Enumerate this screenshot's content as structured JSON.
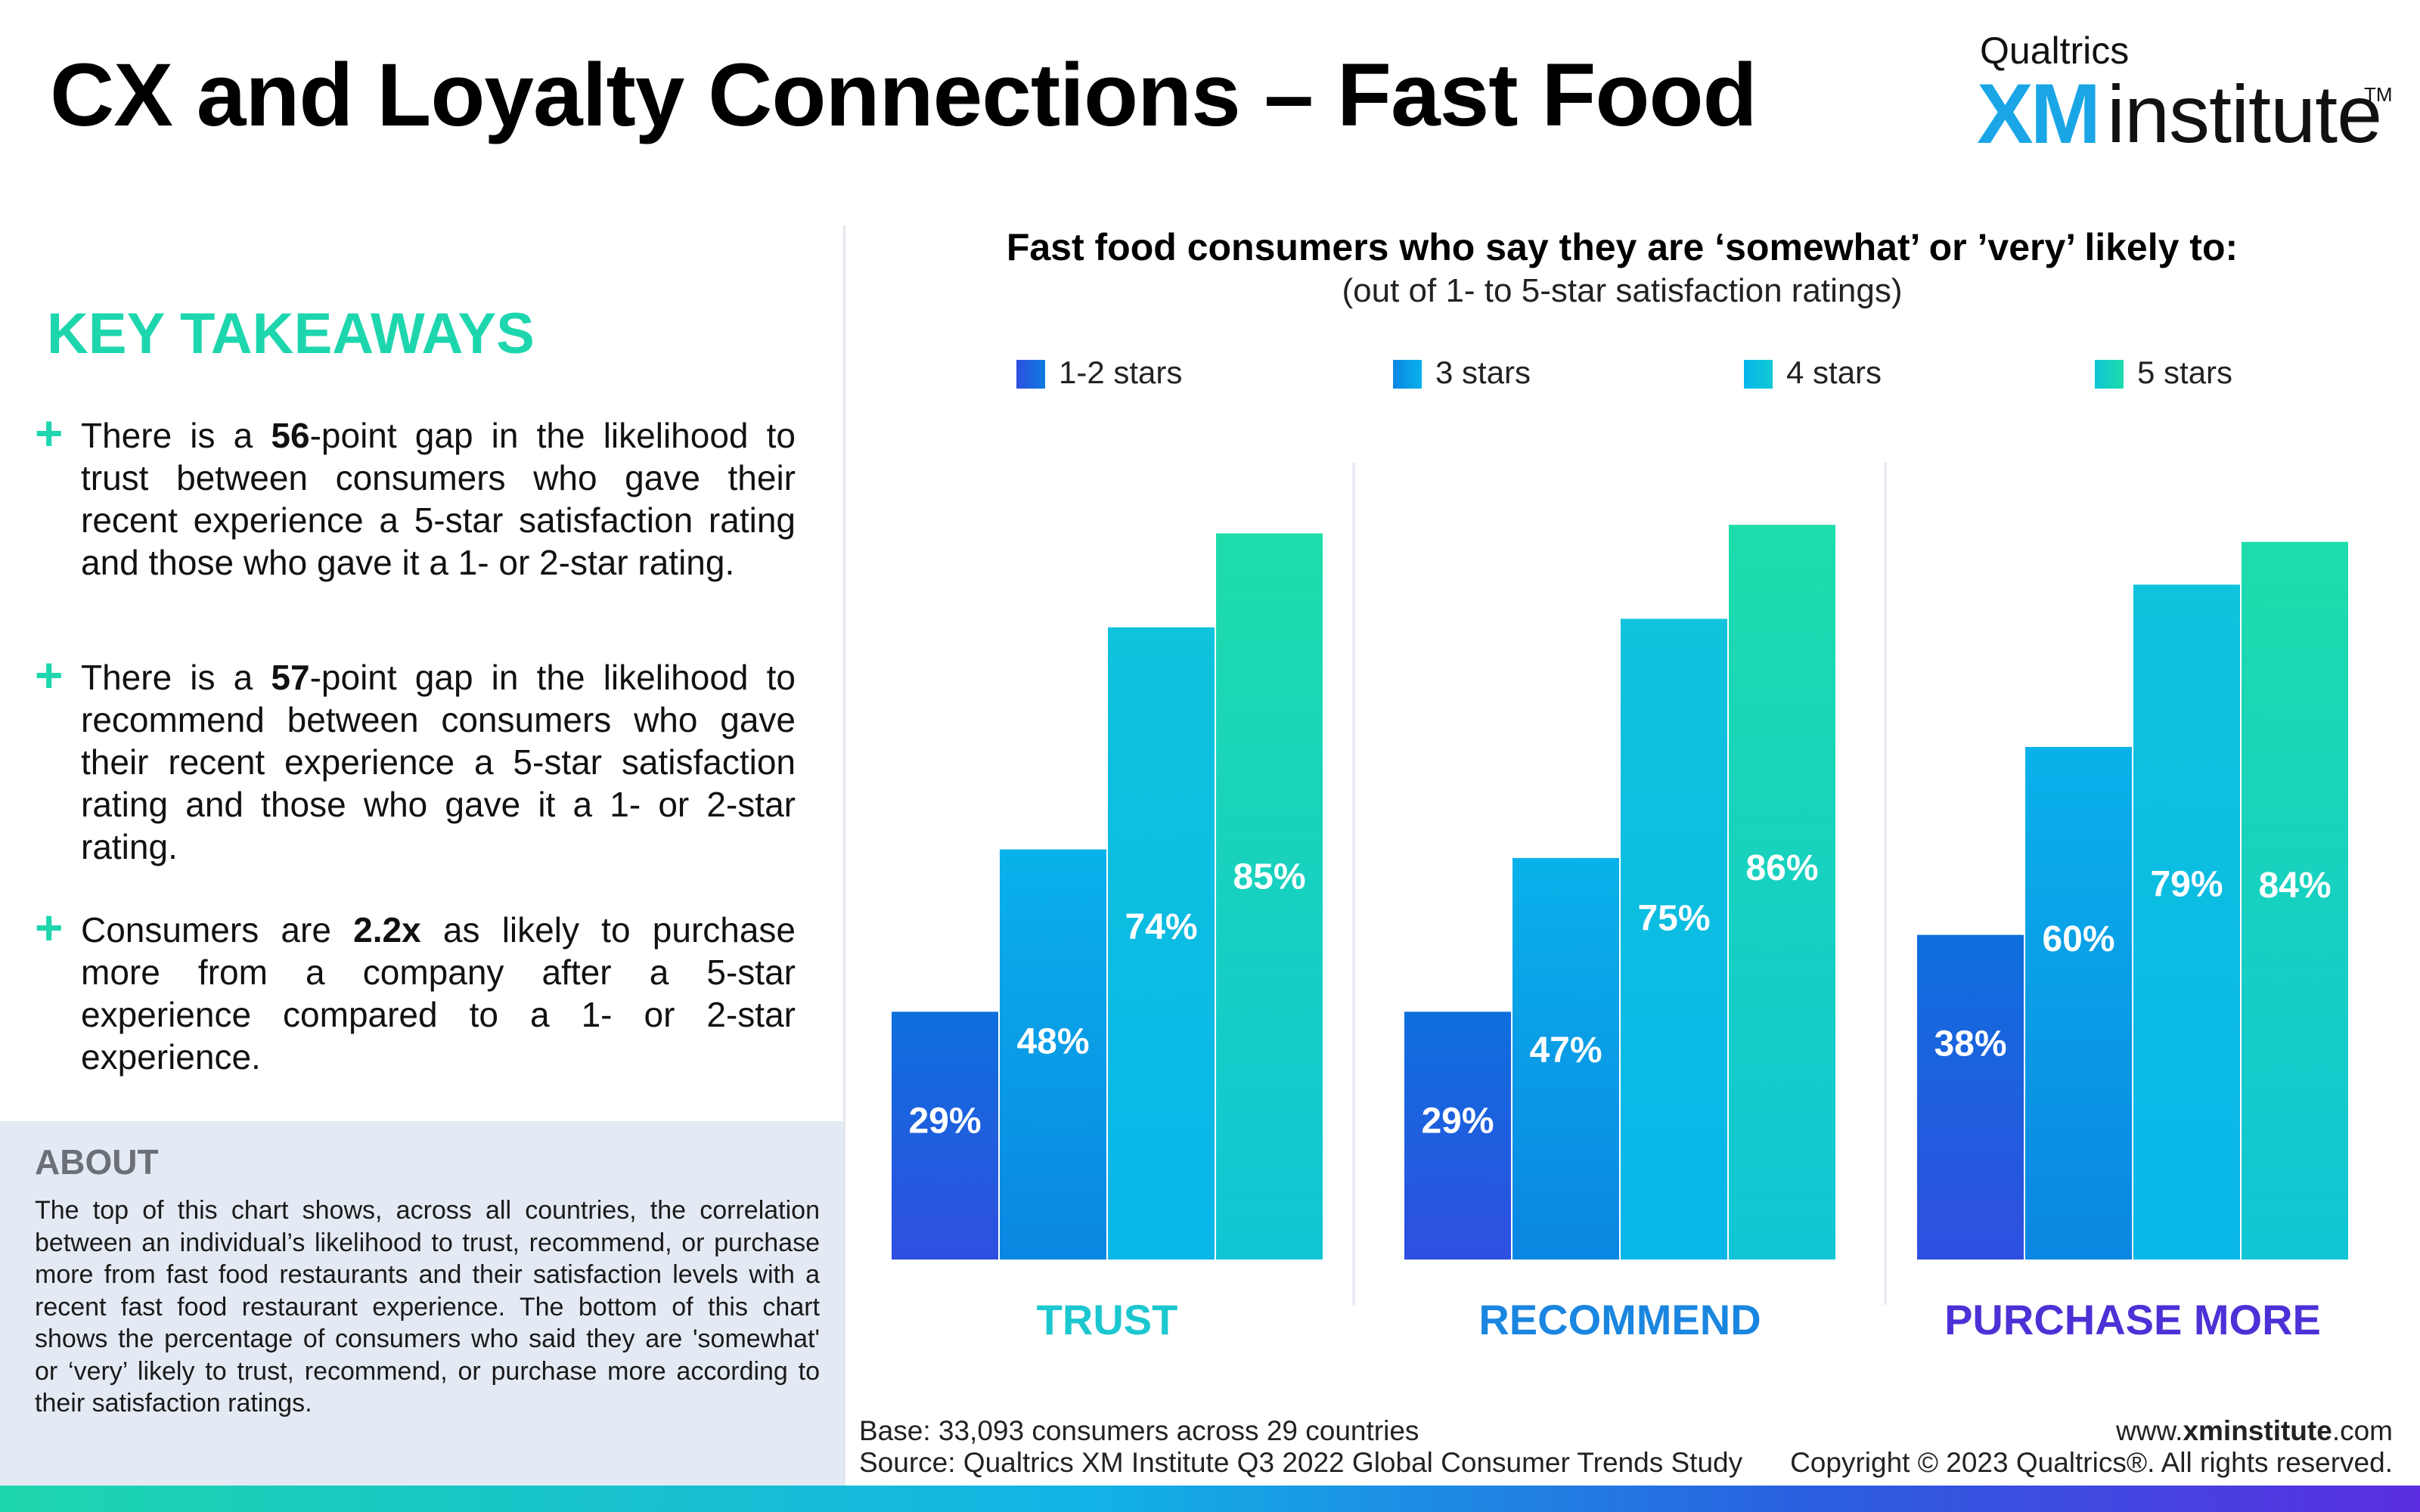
{
  "title": "CX and Loyalty Connections – Fast Food",
  "logo": {
    "top": "Qualtrics",
    "xm": "XM",
    "institute": "institute",
    "tm": "TM"
  },
  "key_takeaways": {
    "heading": "KEY TAKEAWAYS",
    "bullets": [
      {
        "pre": "There is a ",
        "bold": "56",
        "post": "-point gap in the likelihood to trust between consumers who gave their recent experience a 5-star satisfaction rating and those who gave it a 1- or 2-star rating."
      },
      {
        "pre": "There is a  ",
        "bold": "57",
        "post": "-point gap in the likelihood to recommend between consumers who gave their recent experience a 5-star satisfaction rating and those who gave it a 1- or 2-star rating."
      },
      {
        "pre": "Consumers are ",
        "bold": "2.2x",
        "post": " as likely to purchase more from a company after a 5-star experience compared to a 1- or 2-star experience."
      }
    ]
  },
  "about": {
    "heading": "ABOUT",
    "text": "The top of this chart shows, across all countries, the correlation between an individual’s likelihood to trust, recommend, or purchase more from fast food restaurants and their satisfaction levels with a recent fast food restaurant experience. The bottom of this chart shows the percentage of consumers who said they are 'somewhat' or ‘very’ likely to trust, recommend, or purchase more according to their satisfaction ratings."
  },
  "chart_data": {
    "type": "bar",
    "title": "Fast food consumers who say they are ‘somewhat’ or ’very’ likely to:",
    "subtitle": "(out of 1- to 5-star satisfaction ratings)",
    "categories": [
      "TRUST",
      "RECOMMEND",
      "PURCHASE MORE"
    ],
    "category_colors": [
      "#1cc7cf",
      "#1a86e0",
      "#4a32d6"
    ],
    "series": [
      {
        "name": "1-2 stars",
        "values": [
          29,
          29,
          38
        ],
        "color_top": "#0e6fdd",
        "color_bottom": "#2f4fe0"
      },
      {
        "name": "3 stars",
        "values": [
          48,
          47,
          60
        ],
        "color_top": "#09b2ea",
        "color_bottom": "#0b86e2"
      },
      {
        "name": "4 stars",
        "values": [
          74,
          75,
          79
        ],
        "color_top": "#0fc3dc",
        "color_bottom": "#08b6ea"
      },
      {
        "name": "5 stars",
        "values": [
          85,
          86,
          84
        ],
        "color_top": "#1edcab",
        "color_bottom": "#10c6d6"
      }
    ],
    "value_suffix": "%",
    "ylim": [
      0,
      100
    ],
    "legend_position": "top",
    "grid": false
  },
  "footer": {
    "base": "Base: 33,093 consumers across 29 countries",
    "source": "Source: Qualtrics XM Institute Q3 2022 Global Consumer Trends Study",
    "url_pre": "www.",
    "url_bold": "xminstitute",
    "url_post": ".com",
    "copyright": "Copyright © 2023 Qualtrics®. All rights reserved."
  }
}
